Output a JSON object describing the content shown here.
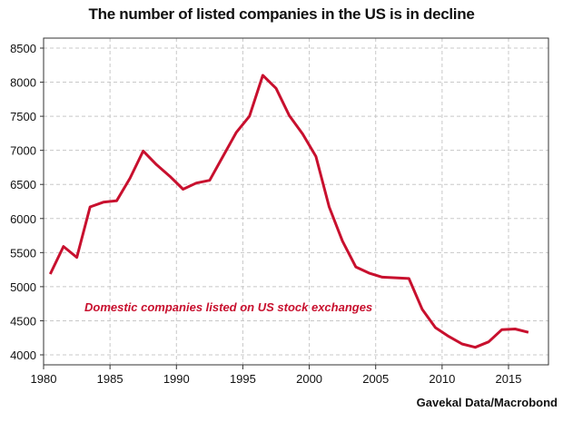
{
  "chart_data": {
    "type": "line",
    "title": "The number of listed companies in the US is in decline",
    "xlabel": "",
    "ylabel": "",
    "xlim": [
      1980,
      2018
    ],
    "ylim": [
      3850,
      8650
    ],
    "grid": true,
    "x_ticks": [
      1980,
      1985,
      1990,
      1995,
      2000,
      2005,
      2010,
      2015
    ],
    "y_ticks": [
      4000,
      4500,
      5000,
      5500,
      6000,
      6500,
      7000,
      7500,
      8000,
      8500
    ],
    "series": [
      {
        "name": "Domestic companies listed on US stock exchanges",
        "color": "#c8102e",
        "x": [
          1980.5,
          1981.5,
          1982.5,
          1983.5,
          1984.5,
          1985.5,
          1986.5,
          1987.5,
          1988.5,
          1989.5,
          1990.5,
          1991.5,
          1992.5,
          1993.5,
          1994.5,
          1995.5,
          1996.5,
          1997.5,
          1998.5,
          1999.5,
          2000.5,
          2001.5,
          2002.5,
          2003.5,
          2004.5,
          2005.5,
          2006.5,
          2007.5,
          2008.5,
          2009.5,
          2010.5,
          2011.5,
          2012.5,
          2013.5,
          2014.5,
          2015.5,
          2016.5
        ],
        "values": [
          5185,
          5590,
          5430,
          6170,
          6240,
          6260,
          6590,
          6990,
          6790,
          6620,
          6430,
          6520,
          6560,
          6910,
          7260,
          7500,
          8100,
          7910,
          7510,
          7240,
          6910,
          6170,
          5670,
          5290,
          5200,
          5140,
          5130,
          5120,
          4670,
          4400,
          4270,
          4160,
          4110,
          4190,
          4370,
          4380,
          4330
        ]
      }
    ],
    "annotation": "Domestic companies listed on US stock exchanges",
    "source": "Gavekal Data/Macrobond"
  }
}
